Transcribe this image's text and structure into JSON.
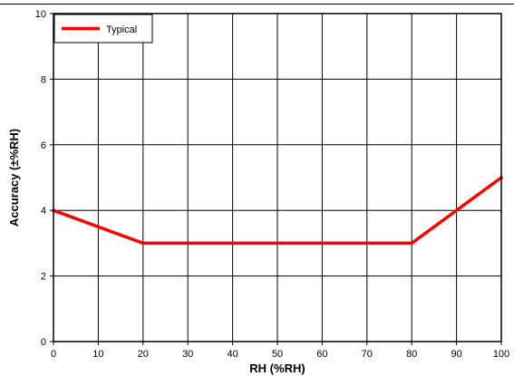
{
  "chart_data": {
    "type": "line",
    "xlabel": "RH (%RH)",
    "ylabel": "Accuracy (±%RH)",
    "xlim": [
      0,
      100
    ],
    "ylim": [
      0,
      10
    ],
    "xticks": [
      0,
      10,
      20,
      30,
      40,
      50,
      60,
      70,
      80,
      90,
      100
    ],
    "yticks": [
      0,
      2,
      4,
      6,
      8,
      10
    ],
    "grid": true,
    "legend_position": "top-left",
    "series": [
      {
        "name": "Typical",
        "color": "#ff0000",
        "x": [
          0,
          20,
          80,
          100
        ],
        "y": [
          4,
          3,
          3,
          5
        ]
      }
    ]
  }
}
